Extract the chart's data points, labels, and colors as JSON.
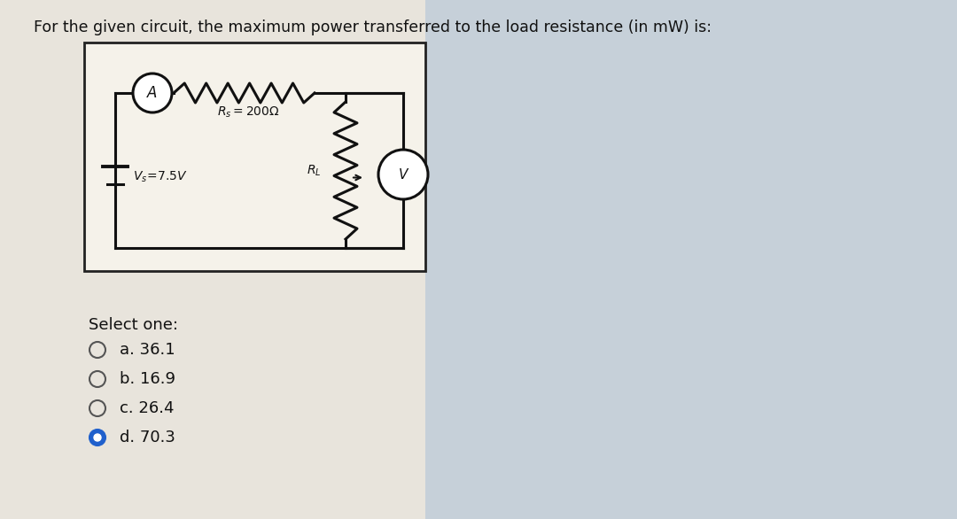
{
  "title": "For the given circuit, the maximum power transferred to the load resistance (in mW) is:",
  "title_fontsize": 12.5,
  "page_bg": "#d0d8e0",
  "content_bg": "#e8e4dc",
  "circuit_bg": "#f0ede6",
  "circuit_border": "#333333",
  "wire_color": "#111111",
  "question_text_color": "#111111",
  "Rs_label": "$R_s = 200\\Omega$",
  "Vs_label": "$V_s\\!=\\!7.5V$",
  "RL_label": "$R_L$",
  "select_one": "Select one:",
  "options": [
    {
      "label": "a. 36.1",
      "selected": false
    },
    {
      "label": "b. 16.9",
      "selected": false
    },
    {
      "label": "c. 26.4",
      "selected": false
    },
    {
      "label": "d. 70.3",
      "selected": true
    }
  ],
  "option_fontsize": 13,
  "select_fontsize": 13,
  "radio_selected_color": "#2060cc",
  "radio_unselected_edge": "#555555"
}
